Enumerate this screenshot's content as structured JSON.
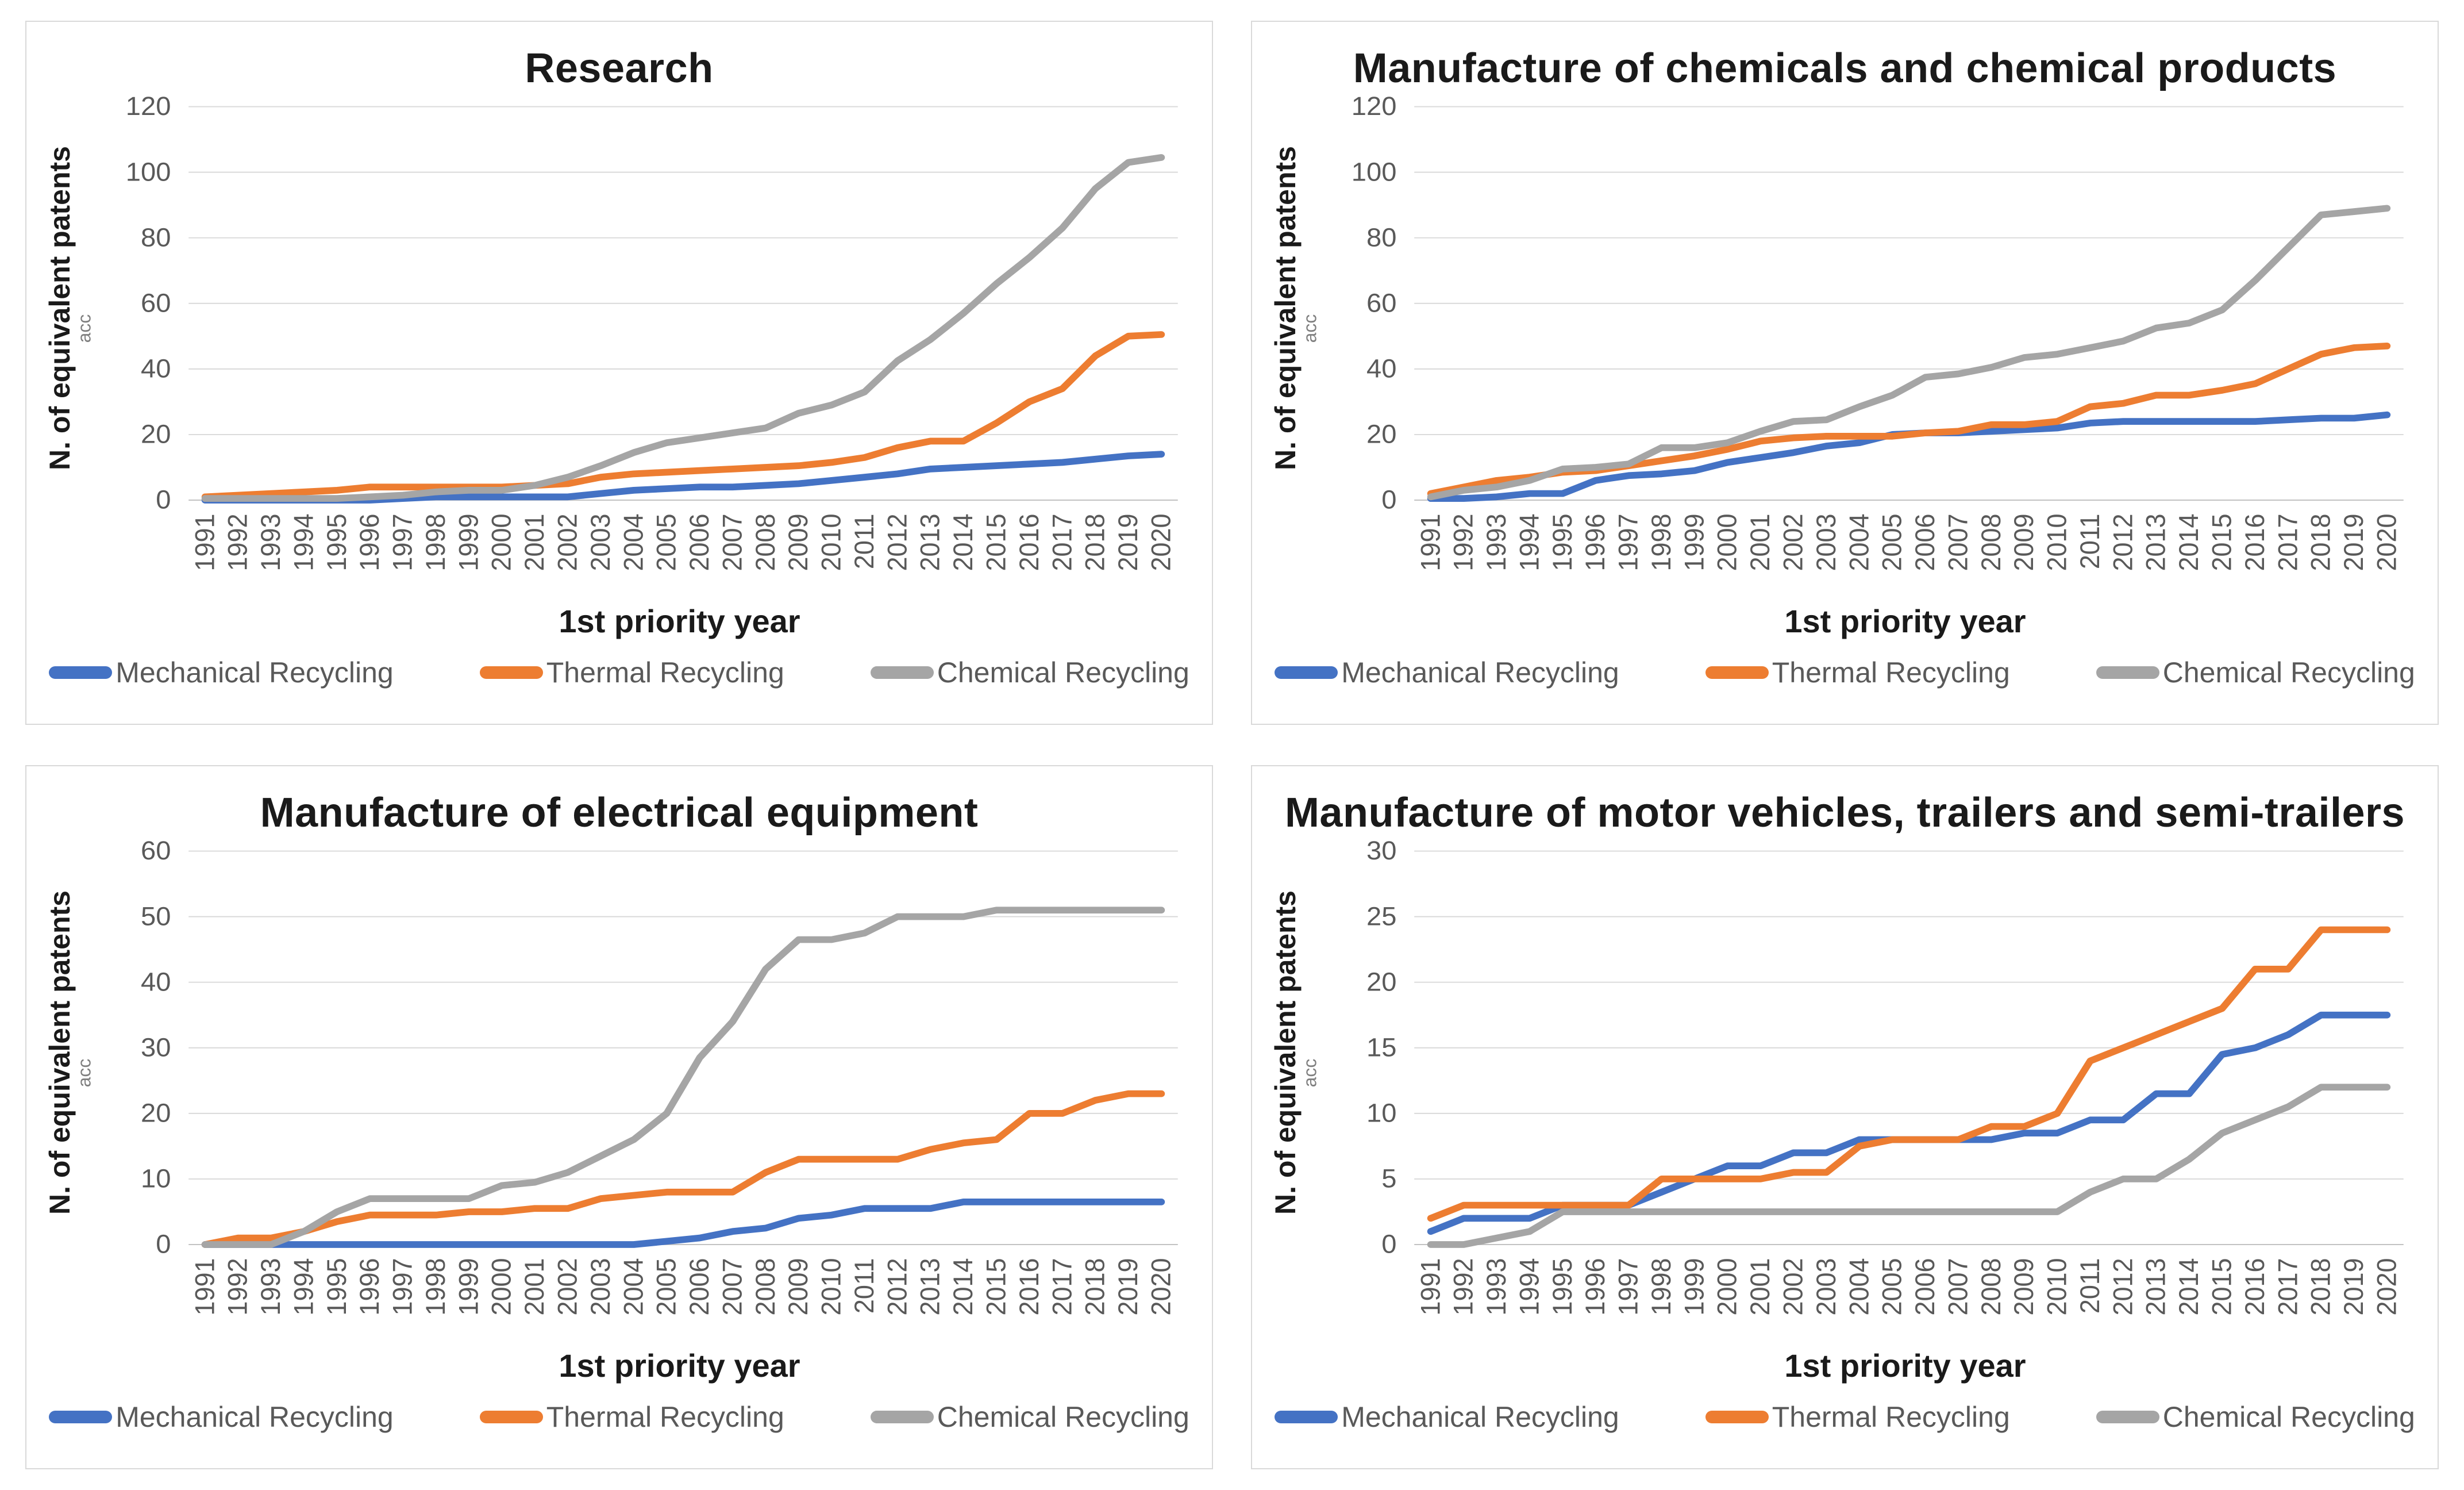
{
  "style": {
    "background": "#FFFFFF",
    "panel_border": "#D9D9D9",
    "grid_color": "#D9D9D9",
    "axis_line_color": "#C2C2C2",
    "tick_text_color": "#595959",
    "title_text_color": "#1A1A1A",
    "legend_text_color": "#595959",
    "series_colors": {
      "mechanical": "#4472C4",
      "thermal": "#ED7D31",
      "chemical": "#A5A5A5"
    }
  },
  "categories": [
    1991,
    1992,
    1993,
    1994,
    1995,
    1996,
    1997,
    1998,
    1999,
    2000,
    2001,
    2002,
    2003,
    2004,
    2005,
    2006,
    2007,
    2008,
    2009,
    2010,
    2011,
    2012,
    2013,
    2014,
    2015,
    2016,
    2017,
    2018,
    2019,
    2020
  ],
  "chart_data": [
    {
      "type": "line",
      "title": "Research",
      "xlabel": "1st priority year",
      "ylabel": "N. of equivalent patents",
      "ylabel_subscript": "acc",
      "ylim": [
        0,
        120
      ],
      "ytick_step": 20,
      "grid": true,
      "legend_position": "bottom",
      "series": [
        {
          "name": "Mechanical Recycling",
          "color": "#4472C4",
          "values": [
            0,
            0,
            0,
            0,
            0,
            0,
            0.5,
            1,
            1,
            1,
            1,
            1,
            2,
            3,
            3.5,
            4,
            4,
            4.5,
            5,
            6,
            7,
            8,
            9.5,
            10,
            10.5,
            11,
            11.5,
            12.5,
            13.5,
            14
          ]
        },
        {
          "name": "Thermal Recycling",
          "color": "#ED7D31",
          "values": [
            1,
            1.5,
            2,
            2.5,
            3,
            4,
            4,
            4,
            4,
            4,
            4.5,
            5,
            7,
            8,
            8.5,
            9,
            9.5,
            10,
            10.5,
            11.5,
            13,
            16,
            18,
            18,
            23.5,
            30,
            34,
            44,
            50,
            50.5
          ]
        },
        {
          "name": "Chemical Recycling",
          "color": "#A5A5A5",
          "values": [
            0.5,
            0.5,
            0.5,
            0.5,
            0.5,
            1,
            1.5,
            2.5,
            3,
            3,
            4.5,
            7,
            10.5,
            14.5,
            17.5,
            19,
            20.5,
            22,
            26.5,
            29,
            33,
            42.5,
            49,
            57,
            66,
            74,
            83,
            95,
            103,
            104.5
          ]
        }
      ]
    },
    {
      "type": "line",
      "title": "Manufacture of chemicals and chemical products",
      "xlabel": "1st priority year",
      "ylabel": "N. of equivalent patents",
      "ylabel_subscript": "acc",
      "ylim": [
        0,
        120
      ],
      "ytick_step": 20,
      "grid": true,
      "legend_position": "bottom",
      "series": [
        {
          "name": "Mechanical Recycling",
          "color": "#4472C4",
          "values": [
            0.5,
            0.5,
            1,
            2,
            2,
            6,
            7.5,
            8,
            9,
            11.5,
            13,
            14.5,
            16.5,
            17.5,
            20,
            20.5,
            20.5,
            21,
            21.5,
            22,
            23.5,
            24,
            24,
            24,
            24,
            24,
            24.5,
            25,
            25,
            26
          ]
        },
        {
          "name": "Thermal Recycling",
          "color": "#ED7D31",
          "values": [
            2,
            4,
            6,
            7,
            8.5,
            9,
            10.5,
            12,
            13.5,
            15.5,
            18,
            19,
            19.5,
            19.5,
            19.5,
            20.5,
            21,
            23,
            23,
            24,
            28.5,
            29.5,
            32,
            32,
            33.5,
            35.5,
            40,
            44.5,
            46.5,
            47
          ]
        },
        {
          "name": "Chemical Recycling",
          "color": "#A5A5A5",
          "values": [
            1,
            3,
            4,
            6,
            9.5,
            10,
            11,
            16,
            16,
            17.5,
            21,
            24,
            24.5,
            28.5,
            32,
            37.5,
            38.5,
            40.5,
            43.5,
            44.5,
            46.5,
            48.5,
            52.5,
            54,
            58,
            67,
            77,
            87,
            88,
            89
          ]
        }
      ]
    },
    {
      "type": "line",
      "title": "Manufacture of electrical equipment",
      "xlabel": "1st priority year",
      "ylabel": "N. of equivalent patents",
      "ylabel_subscript": "acc",
      "ylim": [
        0,
        60
      ],
      "ytick_step": 10,
      "grid": true,
      "legend_position": "bottom",
      "series": [
        {
          "name": "Mechanical Recycling",
          "color": "#4472C4",
          "values": [
            0,
            0,
            0,
            0,
            0,
            0,
            0,
            0,
            0,
            0,
            0,
            0,
            0,
            0,
            0.5,
            1,
            2,
            2.5,
            4,
            4.5,
            5.5,
            5.5,
            5.5,
            6.5,
            6.5,
            6.5,
            6.5,
            6.5,
            6.5,
            6.5
          ]
        },
        {
          "name": "Thermal Recycling",
          "color": "#ED7D31",
          "values": [
            0,
            1,
            1,
            2,
            3.5,
            4.5,
            4.5,
            4.5,
            5,
            5,
            5.5,
            5.5,
            7,
            7.5,
            8,
            8,
            8,
            11,
            13,
            13,
            13,
            13,
            14.5,
            15.5,
            16,
            20,
            20,
            22,
            23,
            23
          ]
        },
        {
          "name": "Chemical Recycling",
          "color": "#A5A5A5",
          "values": [
            0,
            0,
            0,
            2,
            5,
            7,
            7,
            7,
            7,
            9,
            9.5,
            11,
            13.5,
            16,
            20,
            28.5,
            34,
            42,
            46.5,
            46.5,
            47.5,
            50,
            50,
            50,
            51,
            51,
            51,
            51,
            51,
            51
          ]
        }
      ]
    },
    {
      "type": "line",
      "title": "Manufacture of motor vehicles, trailers and semi-trailers",
      "xlabel": "1st priority year",
      "ylabel": "N. of equivalent patents",
      "ylabel_subscript": "acc",
      "ylim": [
        0,
        30
      ],
      "ytick_step": 5,
      "grid": true,
      "legend_position": "bottom",
      "series": [
        {
          "name": "Mechanical Recycling",
          "color": "#4472C4",
          "values": [
            1,
            2,
            2,
            2,
            3,
            3,
            3,
            4,
            5,
            6,
            6,
            7,
            7,
            8,
            8,
            8,
            8,
            8,
            8.5,
            8.5,
            9.5,
            9.5,
            11.5,
            11.5,
            14.5,
            15,
            16,
            17.5,
            17.5,
            17.5
          ]
        },
        {
          "name": "Thermal Recycling",
          "color": "#ED7D31",
          "values": [
            2,
            3,
            3,
            3,
            3,
            3,
            3,
            5,
            5,
            5,
            5,
            5.5,
            5.5,
            7.5,
            8,
            8,
            8,
            9,
            9,
            10,
            14,
            15,
            16,
            17,
            18,
            21,
            21,
            24,
            24,
            24
          ]
        },
        {
          "name": "Chemical Recycling",
          "color": "#A5A5A5",
          "values": [
            0,
            0,
            0.5,
            1,
            2.5,
            2.5,
            2.5,
            2.5,
            2.5,
            2.5,
            2.5,
            2.5,
            2.5,
            2.5,
            2.5,
            2.5,
            2.5,
            2.5,
            2.5,
            2.5,
            4,
            5,
            5,
            6.5,
            8.5,
            9.5,
            10.5,
            12,
            12,
            12
          ]
        }
      ]
    }
  ]
}
